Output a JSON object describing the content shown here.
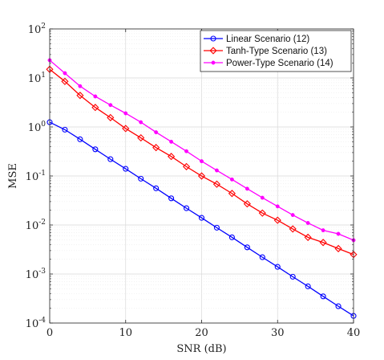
{
  "chart_data": {
    "type": "line",
    "xlabel": "SNR (dB)",
    "ylabel": "MSE",
    "xlim": [
      0,
      40
    ],
    "ylim": [
      0.0001,
      100
    ],
    "yscale": "log",
    "grid": true,
    "legend_position": "top-right",
    "x_ticks": [
      "0",
      "10",
      "20",
      "30",
      "40"
    ],
    "y_ticks": [
      {
        "base": "10",
        "exp": "2"
      },
      {
        "base": "10",
        "exp": "1"
      },
      {
        "base": "10",
        "exp": "0"
      },
      {
        "base": "10",
        "exp": "-1"
      },
      {
        "base": "10",
        "exp": "-2"
      },
      {
        "base": "10",
        "exp": "-3"
      },
      {
        "base": "10",
        "exp": "-4"
      }
    ],
    "x": [
      0,
      2,
      4,
      6,
      8,
      10,
      12,
      14,
      16,
      18,
      20,
      22,
      24,
      26,
      28,
      30,
      32,
      34,
      36,
      38,
      40
    ],
    "series": [
      {
        "name": "Linear Scenario (12)",
        "color": "#0000ff",
        "marker": "circle",
        "values": [
          1.25,
          0.88,
          0.56,
          0.35,
          0.22,
          0.14,
          0.088,
          0.056,
          0.035,
          0.022,
          0.014,
          0.0088,
          0.0056,
          0.0035,
          0.0022,
          0.0014,
          0.00088,
          0.00056,
          0.00035,
          0.00022,
          0.00014
        ]
      },
      {
        "name": "Tanh-Type Scenario (13)",
        "color": "#ff0000",
        "marker": "diamond",
        "values": [
          15,
          8.5,
          4.4,
          2.5,
          1.55,
          0.93,
          0.6,
          0.38,
          0.25,
          0.155,
          0.1,
          0.068,
          0.044,
          0.027,
          0.0175,
          0.0125,
          0.0083,
          0.0056,
          0.0044,
          0.0033,
          0.0025
        ]
      },
      {
        "name": "Power-Type Scenario (14)",
        "color": "#ff00ff",
        "marker": "dot",
        "values": [
          23,
          12.5,
          6.8,
          4.2,
          2.8,
          1.9,
          1.25,
          0.78,
          0.5,
          0.32,
          0.2,
          0.13,
          0.085,
          0.055,
          0.036,
          0.024,
          0.016,
          0.011,
          0.0078,
          0.0066,
          0.0049
        ]
      }
    ]
  }
}
